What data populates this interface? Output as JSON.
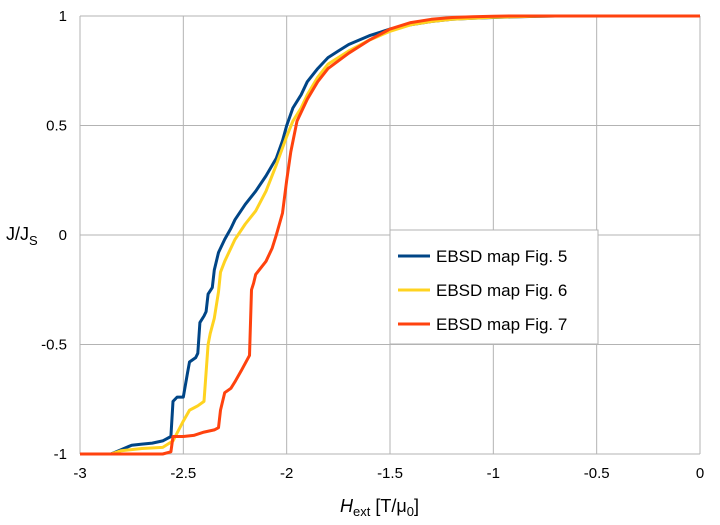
{
  "chart_data": {
    "type": "line",
    "xlabel_main": "H",
    "xlabel_sub": "ext",
    "xlabel_unit_prefix": " [T/μ",
    "xlabel_unit_sub": "0",
    "xlabel_unit_suffix": "]",
    "ylabel_main": "J/J",
    "ylabel_sub": "S",
    "xlim": [
      -3,
      0
    ],
    "ylim": [
      -1,
      1
    ],
    "x_ticks": [
      -3,
      -2.5,
      -2,
      -1.5,
      -1,
      -0.5,
      0
    ],
    "x_tick_labels": [
      "-3",
      "-2.5",
      "-2",
      "-1.5",
      "-1",
      "-0.5",
      "0"
    ],
    "y_ticks": [
      -1,
      -0.5,
      0,
      0.5,
      1
    ],
    "y_tick_labels": [
      "-1",
      "-0.5",
      "0",
      "0.5",
      "1"
    ],
    "grid": true,
    "legend_position": "center-right",
    "series": [
      {
        "name": "EBSD map Fig. 5",
        "color": "#004586",
        "x": [
          -3.0,
          -2.85,
          -2.8,
          -2.75,
          -2.7,
          -2.65,
          -2.6,
          -2.56,
          -2.55,
          -2.53,
          -2.5,
          -2.48,
          -2.47,
          -2.44,
          -2.43,
          -2.42,
          -2.4,
          -2.39,
          -2.38,
          -2.36,
          -2.35,
          -2.33,
          -2.3,
          -2.27,
          -2.25,
          -2.2,
          -2.15,
          -2.1,
          -2.05,
          -2.02,
          -2.0,
          -1.97,
          -1.93,
          -1.9,
          -1.85,
          -1.8,
          -1.75,
          -1.7,
          -1.6,
          -1.5,
          -1.4,
          -1.3,
          -1.2,
          -1.1,
          -1.0,
          -0.9,
          -0.8,
          -0.7,
          -0.5,
          -0.3,
          0.0
        ],
        "y": [
          -1.0,
          -1.0,
          -0.98,
          -0.96,
          -0.955,
          -0.95,
          -0.94,
          -0.92,
          -0.76,
          -0.74,
          -0.74,
          -0.63,
          -0.58,
          -0.56,
          -0.54,
          -0.4,
          -0.37,
          -0.35,
          -0.27,
          -0.24,
          -0.16,
          -0.08,
          -0.02,
          0.03,
          0.07,
          0.14,
          0.2,
          0.27,
          0.35,
          0.43,
          0.5,
          0.58,
          0.64,
          0.7,
          0.76,
          0.81,
          0.84,
          0.87,
          0.91,
          0.94,
          0.96,
          0.975,
          0.985,
          0.99,
          0.993,
          0.996,
          0.998,
          1.0,
          1.0,
          1.0,
          1.0
        ]
      },
      {
        "name": "EBSD map Fig. 6",
        "color": "#ffd320",
        "x": [
          -3.0,
          -2.85,
          -2.8,
          -2.7,
          -2.6,
          -2.55,
          -2.5,
          -2.47,
          -2.45,
          -2.43,
          -2.4,
          -2.38,
          -2.37,
          -2.35,
          -2.33,
          -2.32,
          -2.3,
          -2.27,
          -2.25,
          -2.2,
          -2.15,
          -2.1,
          -2.05,
          -2.0,
          -1.97,
          -1.93,
          -1.9,
          -1.85,
          -1.8,
          -1.7,
          -1.6,
          -1.5,
          -1.4,
          -1.3,
          -1.2,
          -1.1,
          -1.0,
          -0.9,
          -0.8,
          -0.7,
          -0.5,
          0.0
        ],
        "y": [
          -1.0,
          -1.0,
          -0.985,
          -0.975,
          -0.97,
          -0.94,
          -0.85,
          -0.8,
          -0.79,
          -0.78,
          -0.76,
          -0.5,
          -0.45,
          -0.38,
          -0.26,
          -0.17,
          -0.12,
          -0.06,
          -0.02,
          0.05,
          0.11,
          0.2,
          0.32,
          0.45,
          0.52,
          0.58,
          0.64,
          0.72,
          0.78,
          0.84,
          0.89,
          0.93,
          0.96,
          0.975,
          0.985,
          0.99,
          0.994,
          0.997,
          0.999,
          1.0,
          1.0,
          1.0
        ]
      },
      {
        "name": "EBSD map Fig. 7",
        "color": "#ff420e",
        "x": [
          -3.0,
          -2.6,
          -2.56,
          -2.55,
          -2.5,
          -2.45,
          -2.4,
          -2.35,
          -2.33,
          -2.32,
          -2.3,
          -2.27,
          -2.25,
          -2.22,
          -2.18,
          -2.17,
          -2.16,
          -2.15,
          -2.1,
          -2.07,
          -2.05,
          -2.02,
          -2.0,
          -1.98,
          -1.95,
          -1.9,
          -1.85,
          -1.8,
          -1.7,
          -1.6,
          -1.5,
          -1.4,
          -1.3,
          -1.2,
          -1.1,
          -1.0,
          -0.9,
          -0.8,
          -0.7,
          -0.5,
          0.0
        ],
        "y": [
          -1.0,
          -1.0,
          -0.99,
          -0.92,
          -0.92,
          -0.915,
          -0.9,
          -0.89,
          -0.88,
          -0.8,
          -0.72,
          -0.7,
          -0.67,
          -0.62,
          -0.55,
          -0.25,
          -0.22,
          -0.18,
          -0.12,
          -0.06,
          0.0,
          0.1,
          0.25,
          0.38,
          0.52,
          0.62,
          0.7,
          0.76,
          0.83,
          0.89,
          0.94,
          0.97,
          0.985,
          0.993,
          0.997,
          0.999,
          1.0,
          1.0,
          1.0,
          1.0,
          1.0
        ]
      }
    ]
  }
}
